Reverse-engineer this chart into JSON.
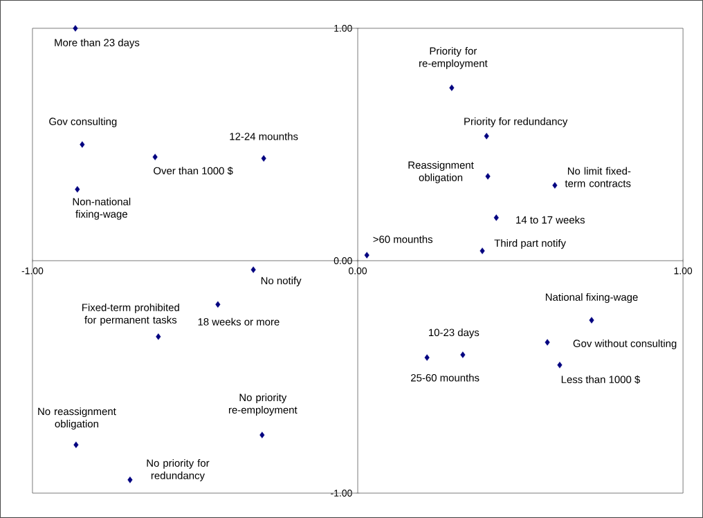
{
  "chart_data": {
    "type": "scatter",
    "series": [
      {
        "color": "#000080",
        "x": [
          -0.868,
          -0.847,
          -0.623,
          -0.289,
          -0.862,
          0.289,
          0.396,
          0.4,
          0.606,
          0.426,
          0.028,
          0.383,
          -0.321,
          -0.43,
          -0.613,
          0.719,
          0.583,
          0.323,
          0.213,
          0.621,
          -0.294,
          -0.866,
          -0.7
        ],
        "values": [
          1.0,
          0.5,
          0.446,
          0.44,
          0.307,
          0.744,
          0.536,
          0.363,
          0.324,
          0.185,
          0.024,
          0.042,
          -0.039,
          -0.188,
          -0.327,
          -0.256,
          -0.351,
          -0.405,
          -0.417,
          -0.449,
          -0.75,
          -0.792,
          -0.943
        ]
      }
    ],
    "annotations": [
      {
        "text": "More than 23 days",
        "x": -0.868,
        "y": 1.0
      },
      {
        "text": "Gov consulting",
        "x": -0.847,
        "y": 0.5
      },
      {
        "text": "Over than 1000 $",
        "x": -0.623,
        "y": 0.446
      },
      {
        "text": "12-24 mounths",
        "x": -0.289,
        "y": 0.44
      },
      {
        "text": "Non-national fixing-wage",
        "x": -0.862,
        "y": 0.307
      },
      {
        "text": "Priority for re-employment",
        "x": 0.289,
        "y": 0.744
      },
      {
        "text": "Priority for redundancy",
        "x": 0.396,
        "y": 0.536
      },
      {
        "text": "Reassignment obligation",
        "x": 0.4,
        "y": 0.363
      },
      {
        "text": "No limit fixed-term contracts",
        "x": 0.606,
        "y": 0.324
      },
      {
        "text": "14 to 17 weeks",
        "x": 0.426,
        "y": 0.185
      },
      {
        "text": ">60 mounths",
        "x": 0.028,
        "y": 0.024
      },
      {
        "text": "Third part notify",
        "x": 0.383,
        "y": 0.042
      },
      {
        "text": "No notify",
        "x": -0.321,
        "y": -0.039
      },
      {
        "text": "18 weeks or more",
        "x": -0.43,
        "y": -0.188
      },
      {
        "text": "Fixed-term prohibited for permanent tasks",
        "x": -0.613,
        "y": -0.327
      },
      {
        "text": "National fixing-wage",
        "x": 0.719,
        "y": -0.256
      },
      {
        "text": "Gov without consulting",
        "x": 0.583,
        "y": -0.351
      },
      {
        "text": "10-23 days",
        "x": 0.323,
        "y": -0.405
      },
      {
        "text": "25-60 mounths",
        "x": 0.213,
        "y": -0.417
      },
      {
        "text": "Less than 1000 $",
        "x": 0.621,
        "y": -0.449
      },
      {
        "text": "No priority re-employment",
        "x": -0.294,
        "y": -0.75
      },
      {
        "text": "No reassignment obligation",
        "x": -0.866,
        "y": -0.792
      },
      {
        "text": "No priority for redundancy",
        "x": -0.7,
        "y": -0.943
      }
    ],
    "xlim": [
      -1,
      1
    ],
    "ylim": [
      -1,
      1
    ],
    "xticks": [
      {
        "value": -1,
        "label": "-1.00"
      },
      {
        "value": 0,
        "label": "0.00"
      },
      {
        "value": 1,
        "label": "1.00"
      }
    ],
    "yticks": [
      {
        "value": -1,
        "label": "-1.00"
      },
      {
        "value": 0,
        "label": "0.00"
      },
      {
        "value": 1,
        "label": "1.00"
      }
    ],
    "grid": false,
    "marker": "diamond"
  }
}
